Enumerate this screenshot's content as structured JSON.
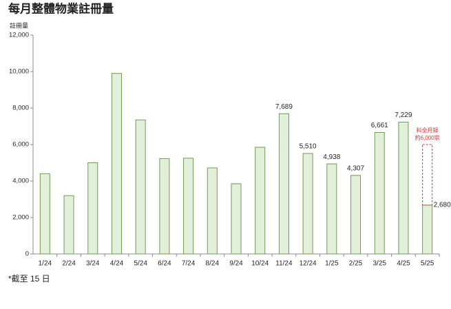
{
  "chart_data": {
    "type": "bar",
    "title": "每月整體物業註冊量",
    "y_label": "註冊量",
    "categories": [
      "1/24",
      "2/24",
      "3/24",
      "4/24",
      "5/24",
      "6/24",
      "7/24",
      "8/24",
      "9/24",
      "10/24",
      "11/24",
      "12/24",
      "1/25",
      "2/25",
      "3/25",
      "4/25",
      "5/25"
    ],
    "values": [
      4400,
      3200,
      5000,
      9900,
      7350,
      5230,
      5250,
      4720,
      3850,
      5850,
      7689,
      5510,
      4938,
      4307,
      6661,
      7229,
      2680
    ],
    "value_labels": [
      null,
      null,
      null,
      null,
      null,
      null,
      null,
      null,
      null,
      null,
      "7,689",
      "5,510",
      "4,938",
      "4,307",
      "6,661",
      "7,229",
      "2,680"
    ],
    "color": "#e2efd9",
    "edge_color": "#6f9a55",
    "ylim": [
      0,
      12000
    ],
    "yticks": [
      0,
      {
        "value": 2000,
        "label": "2,000"
      },
      {
        "value": 4000,
        "label": "4,000"
      },
      {
        "value": 6000,
        "label": "6,000"
      },
      {
        "value": 8000,
        "label": "8,000"
      },
      {
        "value": 10000,
        "label": "10,000"
      },
      {
        "value": 12000,
        "label": "12,000"
      }
    ],
    "projection": {
      "value": 6000,
      "lines": [
        "料全月錄",
        "約6,000宗"
      ],
      "color": "#e03030"
    },
    "footnote": "*截至 15 日",
    "grid": false
  }
}
